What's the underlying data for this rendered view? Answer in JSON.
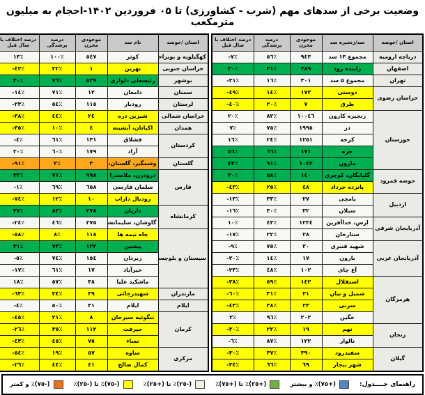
{
  "title": "وضعیت برخی از سدهای مهم (شرب - کشاورزی) تا ۰۵ فروردین ۱۴۰۲-احجام به میلیون مترمکعب",
  "colors": {
    "white": "#f8f8f4",
    "green": "#00b050",
    "yellow": "#ffff00",
    "orange": "#ffa81e",
    "header_bg": "#c9c9c9",
    "province_bg": "#eaeae6",
    "legend_blue": "#5585c2",
    "legend_green": "#72b043",
    "legend_white": "#f2efe2",
    "legend_yellow": "#ffff00",
    "legend_orange": "#e8711c"
  },
  "legend": {
    "label": "راهنمای جــــدول:",
    "items": [
      {
        "name": "blue",
        "color": "#5585c2",
        "label": "(+٧٥)٪ و بیشتر"
      },
      {
        "name": "green",
        "color": "#72b043",
        "label": "(+٢٥)٪ تا (+٧٥)٪"
      },
      {
        "name": "white",
        "color": "#f2efe2",
        "label": "(-٢٥)٪ تا (+٢٥)٪"
      },
      {
        "name": "yellow",
        "color": "#ffff00",
        "label": "(-٧٥)٪ تا (-٢٥)٪"
      },
      {
        "name": "orange",
        "color": "#e8711c",
        "label": "(-٧٥)٪ و کمتر"
      }
    ]
  },
  "tables": {
    "right": {
      "headers": [
        "استان /حوضه",
        "سد/زنجیره سد",
        "موجودی مخزن",
        "درصد پرشدگی",
        "درصد اختلاف با سال قبل"
      ],
      "groups": [
        {
          "province": "دریاچه ارومیه",
          "rows": [
            {
              "dam": "مجموع ۱۳ سد",
              "volume": "٩٤٣",
              "fill": "٥٦٪",
              "diff": "-٧٪",
              "status": "white"
            }
          ]
        },
        {
          "province": "اصفهان",
          "rows": [
            {
              "dam": "زاینده رود",
              "volume": "٣٨٩",
              "fill": "٣١٪",
              "diff": "٣٠٪",
              "status": "green"
            }
          ]
        },
        {
          "province": "تهران",
          "rows": [
            {
              "dam": "مجموع ۵ سد",
              "volume": "٣٠١",
              "fill": "١٦٪",
              "diff": "-٢١٪",
              "status": "white"
            }
          ]
        },
        {
          "province": "خراسان رضوی",
          "rows": [
            {
              "dam": "دوستی",
              "volume": "١٧٢",
              "fill": "١٤٪",
              "diff": "-٤٩٪",
              "status": "yellow"
            },
            {
              "dam": "طرق",
              "volume": "٧",
              "fill": "٢٠٪",
              "diff": "-٤٠٪",
              "status": "yellow"
            }
          ]
        },
        {
          "province": "خوزستان",
          "rows": [
            {
              "dam": "زنجیره کارون",
              "volume": "١٠٠٤٦",
              "fill": "٨٢٪",
              "diff": "٢٠٪",
              "status": "white"
            },
            {
              "dam": "دز",
              "volume": "١٩٩٥",
              "fill": "٧٥٪",
              "diff": "٧٪",
              "status": "white"
            },
            {
              "dam": "کرخه",
              "volume": "١٢٥١",
              "fill": "٢٤٪",
              "diff": "١٦٪",
              "status": "white"
            },
            {
              "dam": "جره",
              "volume": "١٧١",
              "fill": "٦٦٪",
              "diff": "٥٦٪",
              "status": "green"
            },
            {
              "dam": "مارون",
              "volume": "١٠٤٢",
              "fill": "٩١٪",
              "diff": "٤٣٪",
              "status": "green"
            }
          ]
        },
        {
          "province": "حوضه قمرود",
          "rows": [
            {
              "dam": "گلپایگان، کوچری",
              "volume": "١٤٠",
              "fill": "٥٨٪",
              "diff": "٣٠٪",
              "status": "green"
            },
            {
              "dam": "پانزده خرداد",
              "volume": "٤٨",
              "fill": "٢٥٪",
              "diff": "-٤٣٪",
              "status": "yellow"
            }
          ]
        },
        {
          "province": "اردبیل",
          "rows": [
            {
              "dam": "یامچی",
              "volume": "٢٧",
              "fill": "٣٣٪",
              "diff": "-١٣٪",
              "status": "white"
            },
            {
              "dam": "سبلان",
              "volume": "٣٢",
              "fill": "٣٠٪",
              "diff": "-١٦٪",
              "status": "white"
            }
          ]
        },
        {
          "province": "آذربایجان شرقی",
          "rows": [
            {
              "dam": "ارس، خداآفرین",
              "volume": "١٢٣٤",
              "fill": "٤٣٪",
              "diff": "١٠٪",
              "status": "white"
            },
            {
              "dam": "ستارخان",
              "volume": "٢٨",
              "fill": "٢٢٪",
              "diff": "-١٧٪",
              "status": "white"
            }
          ]
        },
        {
          "province": "آذربایجان غربی",
          "rows": [
            {
              "dam": "شهید قنبری",
              "volume": "٢٠",
              "fill": "٧٥٪",
              "diff": "-٩٪",
              "status": "white"
            },
            {
              "dam": "بارون",
              "volume": "١٧",
              "fill": "١٤٪",
              "diff": "-٢٠٪",
              "status": "white"
            },
            {
              "dam": "آغ چای",
              "volume": "١٠٢",
              "fill": "٤٨٪",
              "diff": "-٢٣٪",
              "status": "white"
            }
          ]
        },
        {
          "province": "هرمزگان",
          "rows": [
            {
              "dam": "استقلال",
              "volume": "١٤٢",
              "fill": "٥٩٪",
              "diff": "-٣٨٪",
              "status": "yellow"
            },
            {
              "dam": "شمیل و نیان",
              "volume": "٣١",
              "fill": "٣١٪",
              "diff": "-٦٠٪",
              "status": "yellow"
            },
            {
              "dam": "سرنی",
              "volume": "٢٣",
              "fill": "٣٨٪",
              "diff": "-٤٣٪",
              "status": "yellow"
            },
            {
              "dam": "جگین",
              "volume": "٢٠٢",
              "fill": "٩٦٪",
              "diff": "٢٪",
              "status": "white"
            }
          ]
        },
        {
          "province": "زنجان",
          "rows": [
            {
              "dam": "تهم",
              "volume": "١٩",
              "fill": "٢٢٪",
              "diff": "-٣٠٪",
              "status": "yellow"
            },
            {
              "dam": "تالوار",
              "volume": "١٢٢",
              "fill": "٨٧٪",
              "diff": "-٦٪",
              "status": "white"
            }
          ]
        },
        {
          "province": "گیلان",
          "rows": [
            {
              "dam": "سفیدرود",
              "volume": "٣٩٠",
              "fill": "٣٧٪",
              "diff": "-٣٠٪",
              "status": "yellow"
            },
            {
              "dam": "شهر بیجار",
              "volume": "٦٩",
              "fill": "٦٦٪",
              "diff": "-٣٤٪",
              "status": "yellow"
            }
          ]
        }
      ]
    },
    "left": {
      "headers": [
        "استان /حوضه",
        "نام سد",
        "موجودی مخزن",
        "درصد پرشدگی",
        "درصد اختلاف با سال قبل"
      ],
      "groups": [
        {
          "province": "کهگیلویه و بویراحمد",
          "rows": [
            {
              "dam": "کوثر",
              "volume": "٥٤٧",
              "fill": "١٠٠٪",
              "diff": "١٣٪",
              "status": "white"
            }
          ]
        },
        {
          "province": "خراسان جنوبی",
          "rows": [
            {
              "dam": "نهرین",
              "volume": "١",
              "fill": "٢٢٪",
              "diff": "-٤٣٪",
              "status": "yellow"
            }
          ]
        },
        {
          "province": "بوشهر",
          "rows": [
            {
              "dam": "رئیسعلی دلواری",
              "volume": "٥٢٩",
              "fill": "٧٦٪",
              "diff": "٣٠٪",
              "status": "green"
            }
          ]
        },
        {
          "province": "سمنان",
          "rows": [
            {
              "dam": "دامغان",
              "volume": "١٢",
              "fill": "٧١٪",
              "diff": "-١٤٪",
              "status": "white"
            }
          ]
        },
        {
          "province": "لرستان",
          "rows": [
            {
              "dam": "رودبار",
              "volume": "١١٥",
              "fill": "٥٤٪",
              "diff": "-٢٣٪",
              "status": "white"
            }
          ]
        },
        {
          "province": "خراسان شمالی",
          "rows": [
            {
              "dam": "شیرین دره",
              "volume": "٢٤",
              "fill": "٤٤٪",
              "diff": "-٣٨٪",
              "status": "yellow"
            }
          ]
        },
        {
          "province": "همدان",
          "rows": [
            {
              "dam": "اکباتان، آبشینه",
              "volume": "٤",
              "fill": "١٠٪",
              "diff": "-٣٥٪",
              "status": "yellow"
            }
          ]
        },
        {
          "province": "کردستان",
          "rows": [
            {
              "dam": "قشلاق",
              "volume": "١٣١",
              "fill": "٦١٪",
              "diff": "-٤٪",
              "status": "white"
            },
            {
              "dam": "آزاد",
              "volume": "١٧٩",
              "fill": "٦٠٪",
              "diff": "٢٠٪",
              "status": "white"
            }
          ]
        },
        {
          "province": "گلستان",
          "rows": [
            {
              "dam": "وشمگیر، گلستان، بوستان",
              "volume": "٣",
              "fill": "٢٪",
              "diff": "-٩١٪",
              "status": "orange"
            }
          ]
        },
        {
          "province": "فارس",
          "rows": [
            {
              "dam": "درودزن، ملاصدرا",
              "volume": "٩٩٨",
              "fill": "٧١٪",
              "diff": "٣٣٪",
              "status": "green"
            },
            {
              "dam": "سلمان فارسی",
              "volume": "٦٥٨",
              "fill": "٦٩٪",
              "diff": "-١٪",
              "status": "white"
            },
            {
              "dam": "رودبال داراب",
              "volume": "١٠",
              "fill": "١٢٪",
              "diff": "-٧٤٪",
              "status": "yellow"
            }
          ]
        },
        {
          "province": "کرمانشاه",
          "rows": [
            {
              "dam": "داریان",
              "volume": "٢٧٨",
              "fill": "٨٣٪",
              "diff": "٣٧٪",
              "status": "green"
            },
            {
              "dam": "گاوشان، سلیمانشاه",
              "volume": "٢٧٥",
              "fill": "٤٦٪",
              "diff": "-٢٤٪",
              "status": "white"
            }
          ]
        },
        {
          "province": "سیستان و بلوچستان",
          "rows": [
            {
              "dam": "چاه نیمه ها",
              "volume": "١١٨",
              "fill": "٨٪",
              "diff": "-٥٨٪",
              "status": "yellow"
            },
            {
              "dam": "پیشین",
              "volume": "١٢٢",
              "fill": "٧٣٪",
              "diff": "٣١٪",
              "status": "green"
            },
            {
              "dam": "زیردان",
              "volume": "١٥٤",
              "fill": "٧٤٪",
              "diff": "-٥٪",
              "status": "white"
            },
            {
              "dam": "خیرآباد",
              "volume": "١٧",
              "fill": "٦١٪",
              "diff": "-١٧٪",
              "status": "white"
            },
            {
              "dam": "ماشکید علیا",
              "volume": "٣٨",
              "fill": "٥٧٪",
              "diff": "١٨٪",
              "status": "white"
            }
          ]
        },
        {
          "province": "مازندران",
          "rows": [
            {
              "dam": "شهیدرجائی",
              "volume": "٣٩",
              "fill": "٢٤٪",
              "diff": "-٦٣٪",
              "status": "yellow"
            }
          ]
        },
        {
          "province": "ایلام",
          "rows": [
            {
              "dam": "ایلام",
              "volume": "٣١",
              "fill": "٥٠٪",
              "diff": "-٤٪",
              "status": "white"
            }
          ]
        },
        {
          "province": "کرمان",
          "rows": [
            {
              "dam": "تنگوئیه سیرجان",
              "volume": "٨",
              "fill": "٢١٪",
              "diff": "-٤٥٪",
              "status": "yellow"
            },
            {
              "dam": "جیرفت",
              "volume": "١١٢",
              "fill": "٣٥٪",
              "diff": "-٢٦٪",
              "status": "yellow"
            },
            {
              "dam": "نساء",
              "volume": "٧٥",
              "fill": "٤٥٪",
              "diff": "-٤٣٪",
              "status": "yellow"
            }
          ]
        },
        {
          "province": "مرکزی",
          "rows": [
            {
              "dam": "ساوه",
              "volume": "٥٧",
              "fill": "١٩٪",
              "diff": "-٥٤٪",
              "status": "yellow"
            },
            {
              "dam": "کمال صالح",
              "volume": "٤١",
              "fill": "٤٤٪",
              "diff": "-٢٦٪",
              "status": "yellow"
            }
          ]
        }
      ]
    }
  }
}
